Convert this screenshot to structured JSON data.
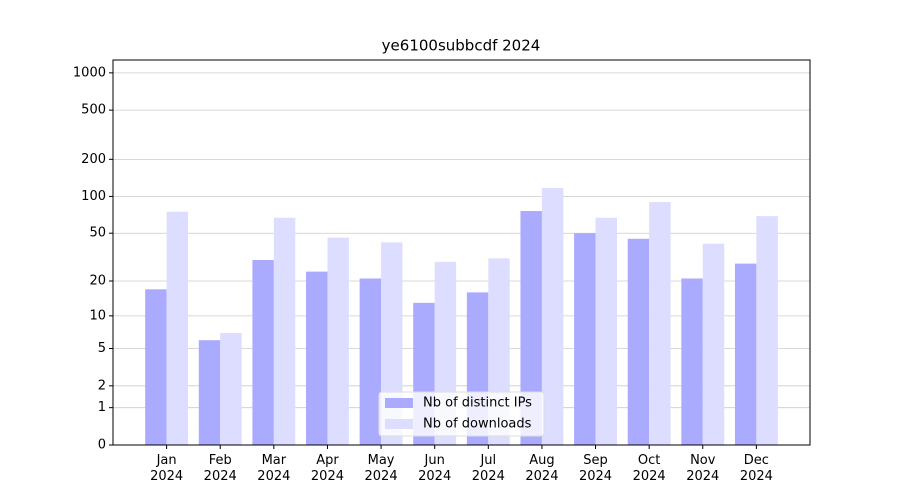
{
  "chart_data": {
    "type": "bar",
    "title": "ye6100subbcdf 2024",
    "categories": [
      "Jan 2024",
      "Feb 2024",
      "Mar 2024",
      "Apr 2024",
      "May 2024",
      "Jun 2024",
      "Jul 2024",
      "Aug 2024",
      "Sep 2024",
      "Oct 2024",
      "Nov 2024",
      "Dec 2024"
    ],
    "series": [
      {
        "name": "Nb of distinct IPs",
        "color": "#aaaaff",
        "values": [
          17,
          6,
          30,
          24,
          21,
          13,
          16,
          76,
          50,
          45,
          21,
          28
        ]
      },
      {
        "name": "Nb of downloads",
        "color": "#ddddff",
        "values": [
          75,
          7,
          67,
          46,
          42,
          29,
          31,
          117,
          67,
          90,
          41,
          69
        ]
      }
    ],
    "yscale": "log1p",
    "ylim": [
      0,
      1270
    ],
    "yticks": [
      0,
      1,
      2,
      5,
      10,
      20,
      50,
      100,
      200,
      500,
      1000
    ],
    "grid": true,
    "legend": "lower center"
  }
}
